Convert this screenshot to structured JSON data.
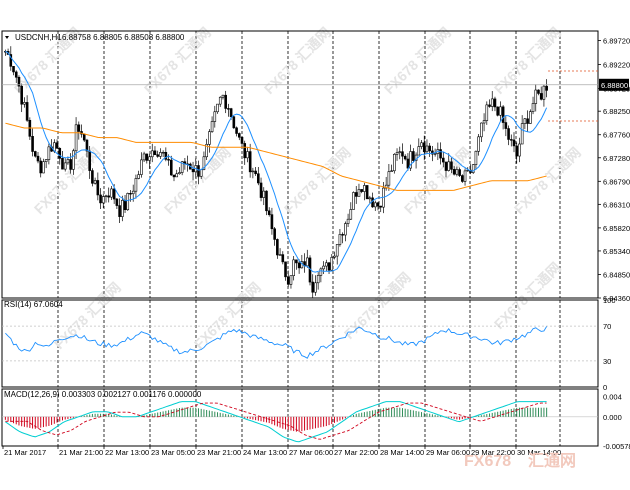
{
  "main_panel": {
    "title": "USDCNH,H1",
    "ohlc": "6.88758 6.88805 6.88508 6.88800",
    "price_labels": [
      "6.89720",
      "6.89220",
      "6.88720",
      "6.88250",
      "6.87760",
      "6.87280",
      "6.86790",
      "6.86310",
      "6.85820",
      "6.85340",
      "6.84850",
      "6.84360"
    ],
    "current_price": "6.88800"
  },
  "rsi_panel": {
    "title": "RSI(14) 67.0604",
    "levels": [
      "100",
      "70",
      "30",
      "0"
    ]
  },
  "macd_panel": {
    "title": "MACD(12,26,9) 0.003303 0.002127 0.001176 0.000000",
    "levels": [
      "0.004",
      "0.000",
      "-0.00578"
    ]
  },
  "time_labels": [
    "21 Mar 2017",
    "21 Mar 21:00",
    "22 Mar 13:00",
    "23 Mar 05:00",
    "23 Mar 21:00",
    "24 Mar 13:00",
    "27 Mar 06:00",
    "27 Mar 22:00",
    "28 Mar 14:00",
    "29 Mar 06:00",
    "29 Mar 22:00",
    "30 Mar 14:00"
  ],
  "watermark": {
    "brand": "FX678",
    "cn": "汇通网"
  },
  "colors": {
    "bar": "#000000",
    "ma_fast": "#1e90ff",
    "ma_slow": "#ff8c00",
    "rsi": "#1e90ff",
    "macd_pos": "#2e8b57",
    "macd_neg": "#d0021b",
    "signal": "#d0021b",
    "macd_line": "#00ced1",
    "marker": "#e05020"
  },
  "chart_data": [
    {
      "type": "candlestick",
      "title": "USDCNH,H1",
      "ylim": [
        6.8436,
        6.8992
      ],
      "x_time_labels": [
        "21 Mar 2017",
        "21 Mar 21:00",
        "22 Mar 13:00",
        "23 Mar 05:00",
        "23 Mar 21:00",
        "24 Mar 13:00",
        "27 Mar 06:00",
        "27 Mar 22:00",
        "28 Mar 14:00",
        "29 Mar 06:00",
        "29 Mar 22:00",
        "30 Mar 14:00"
      ],
      "close_path": [
        6.895,
        6.893,
        6.889,
        6.884,
        6.878,
        6.872,
        6.871,
        6.874,
        6.876,
        6.874,
        6.87,
        6.872,
        6.88,
        6.877,
        6.871,
        6.866,
        6.864,
        6.866,
        6.865,
        6.862,
        6.863,
        6.866,
        6.869,
        6.873,
        6.874,
        6.875,
        6.874,
        6.871,
        6.869,
        6.87,
        6.872,
        6.871,
        6.87,
        6.872,
        6.877,
        6.882,
        6.886,
        6.884,
        6.88,
        6.876,
        6.873,
        6.871,
        6.868,
        6.864,
        6.859,
        6.855,
        6.85,
        6.848,
        6.851,
        6.849,
        6.852,
        6.846,
        6.85,
        6.849,
        6.851,
        6.855,
        6.858,
        6.861,
        6.865,
        6.868,
        6.866,
        6.864,
        6.863,
        6.866,
        6.87,
        6.873,
        6.874,
        6.872,
        6.874,
        6.877,
        6.875,
        6.874,
        6.873,
        6.872,
        6.87,
        6.869,
        6.868,
        6.869,
        6.872,
        6.878,
        6.882,
        6.884,
        6.883,
        6.879,
        6.876,
        6.873,
        6.879,
        6.882,
        6.885,
        6.886,
        6.888
      ],
      "ma_slow_path": [
        6.88,
        6.879,
        6.879,
        6.878,
        6.878,
        6.877,
        6.877,
        6.876,
        6.876,
        6.876,
        6.876,
        6.875,
        6.875,
        6.875,
        6.874,
        6.873,
        6.872,
        6.871,
        6.869,
        6.868,
        6.867,
        6.866,
        6.866,
        6.866,
        6.866,
        6.867,
        6.868,
        6.868,
        6.868,
        6.869
      ],
      "current_price": 6.888
    },
    {
      "type": "line",
      "title": "RSI(14) 67.0604",
      "ylim": [
        0,
        100
      ],
      "levels": [
        30,
        70
      ],
      "values": [
        62,
        48,
        40,
        52,
        45,
        55,
        58,
        60,
        54,
        50,
        48,
        50,
        56,
        62,
        58,
        50,
        44,
        40,
        42,
        46,
        52,
        60,
        66,
        62,
        57,
        54,
        50,
        47,
        40,
        36,
        42,
        48,
        55,
        62,
        68,
        64,
        58,
        55,
        50,
        48,
        52,
        58,
        66,
        64,
        60,
        58,
        55,
        50,
        52,
        56,
        60,
        66,
        67
      ]
    },
    {
      "type": "bar",
      "title": "MACD(12,26,9) 0.003303 0.002127 0.001176 0.000000",
      "ylim": [
        -0.00578,
        0.0055
      ],
      "levels": [
        0.004,
        0.0,
        -0.00578
      ],
      "values": [
        -0.001,
        -0.003,
        -0.004,
        -0.003,
        -0.001,
        0.0,
        0.001,
        0.001,
        0.0,
        0.0,
        0.001,
        0.002,
        0.003,
        0.003,
        0.002,
        0.001,
        0.0,
        -0.001,
        -0.002,
        -0.004,
        -0.005,
        -0.004,
        -0.003,
        -0.001,
        0.001,
        0.002,
        0.003,
        0.003,
        0.002,
        0.001,
        0.0,
        -0.001,
        0.0,
        0.001,
        0.002,
        0.003,
        0.003,
        0.003
      ]
    }
  ]
}
